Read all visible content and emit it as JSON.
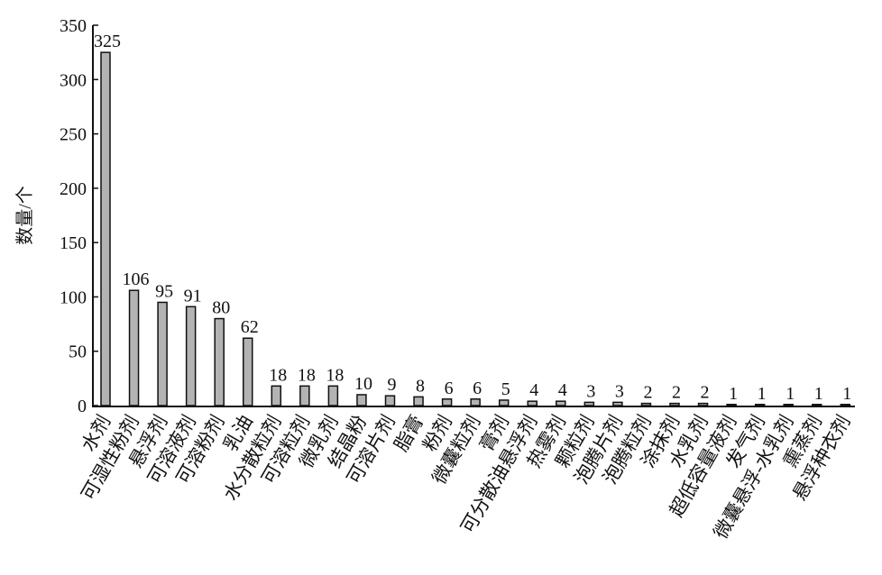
{
  "chart_data": {
    "type": "bar",
    "y_label": "数量/个",
    "categories": [
      "水剂",
      "可湿性粉剂",
      "悬浮剂",
      "可溶液剂",
      "可溶粉剂",
      "乳油",
      "水分散粒剂",
      "可溶粒剂",
      "微乳剂",
      "结晶粉",
      "可溶片剂",
      "脂膏",
      "粉剂",
      "微囊粒剂",
      "膏剂",
      "可分散油悬浮剂",
      "热雾剂",
      "颗粒剂",
      "泡腾片剂",
      "泡腾粒剂",
      "涂抹剂",
      "水乳剂",
      "超低容量液剂",
      "发气剂",
      "微囊悬浮-水乳剂",
      "熏蒸剂",
      "悬浮种衣剂"
    ],
    "values": [
      325,
      106,
      95,
      91,
      80,
      62,
      18,
      18,
      18,
      10,
      9,
      8,
      6,
      6,
      5,
      4,
      4,
      3,
      3,
      2,
      2,
      2,
      1,
      1,
      1,
      1,
      1
    ],
    "color": "#b3b3b3",
    "ylim": [
      0,
      350
    ],
    "yticks": [
      0,
      50,
      100,
      150,
      200,
      250,
      300,
      350
    ]
  }
}
